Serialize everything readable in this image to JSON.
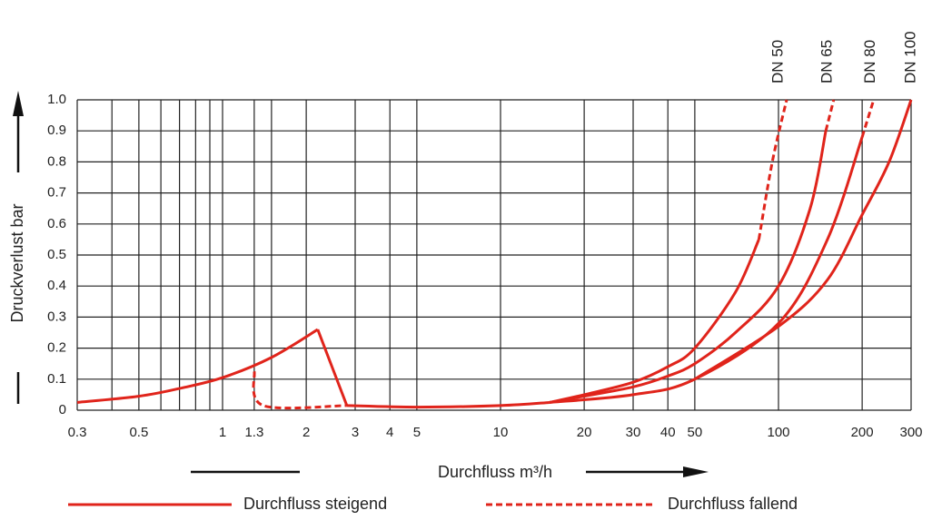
{
  "chart_data": {
    "type": "line",
    "xlabel": "Durchfluss m³/h",
    "ylabel": "Druckverlust bar",
    "xscale": "log",
    "xlim": [
      0.3,
      300
    ],
    "ylim": [
      0,
      1
    ],
    "xticks": [
      0.3,
      0.5,
      1,
      1.3,
      2,
      3,
      4,
      5,
      10,
      20,
      30,
      40,
      50,
      100,
      200,
      300
    ],
    "xminor": [
      0.4,
      0.6,
      0.7,
      0.8,
      0.9,
      1.5
    ],
    "yticks": [
      0,
      0.1,
      0.2,
      0.3,
      0.4,
      0.5,
      0.6,
      0.7,
      0.8,
      0.9,
      {
        "value": 1,
        "label": "1.0"
      }
    ],
    "grid": true,
    "color": "#e0241b",
    "legend": [
      {
        "name": "Durchfluss steigend",
        "dashed": false
      },
      {
        "name": "Durchfluss fallend",
        "dashed": true
      }
    ],
    "annotations": [
      {
        "text": "DN 50",
        "x": 100
      },
      {
        "text": "DN 65",
        "x": 150
      },
      {
        "text": "DN 80",
        "x": 215
      },
      {
        "text": "DN 100",
        "x": 300
      }
    ],
    "series": [
      {
        "dashed": false,
        "x": [
          0.3,
          0.5,
          0.7,
          1,
          1.5,
          2.2
        ],
        "values": [
          0.025,
          0.045,
          0.07,
          0.105,
          0.17,
          0.26
        ]
      },
      {
        "dashed": false,
        "x": [
          2.2,
          2.8
        ],
        "values": [
          0.26,
          0.015
        ]
      },
      {
        "dashed": false,
        "x": [
          2.8,
          5,
          10,
          15
        ],
        "values": [
          0.015,
          0.01,
          0.015,
          0.025
        ]
      },
      {
        "dashed": false,
        "x": [
          15,
          20,
          30,
          40,
          50,
          70,
          85
        ],
        "values": [
          0.025,
          0.05,
          0.09,
          0.14,
          0.2,
          0.38,
          0.55
        ]
      },
      {
        "dashed": true,
        "x": [
          85,
          95,
          107
        ],
        "values": [
          0.55,
          0.8,
          1
        ]
      },
      {
        "dashed": false,
        "x": [
          15,
          20,
          30,
          40,
          50,
          70,
          100,
          130,
          148
        ],
        "values": [
          0.025,
          0.045,
          0.075,
          0.11,
          0.15,
          0.25,
          0.4,
          0.65,
          0.9
        ]
      },
      {
        "dashed": true,
        "x": [
          148,
          158
        ],
        "values": [
          0.9,
          1
        ]
      },
      {
        "dashed": false,
        "x": [
          15,
          30,
          50,
          100,
          150,
          200
        ],
        "values": [
          0.025,
          0.05,
          0.1,
          0.28,
          0.55,
          0.88
        ]
      },
      {
        "dashed": true,
        "x": [
          200,
          220
        ],
        "values": [
          0.88,
          1
        ]
      },
      {
        "dashed": false,
        "x": [
          50,
          100,
          150,
          200,
          250,
          300
        ],
        "values": [
          0.1,
          0.27,
          0.42,
          0.63,
          0.8,
          1
        ]
      },
      {
        "dashed": true,
        "x": [
          1.3,
          1.4,
          2.8
        ],
        "values": [
          0.125,
          0.015,
          0.015
        ]
      }
    ]
  }
}
